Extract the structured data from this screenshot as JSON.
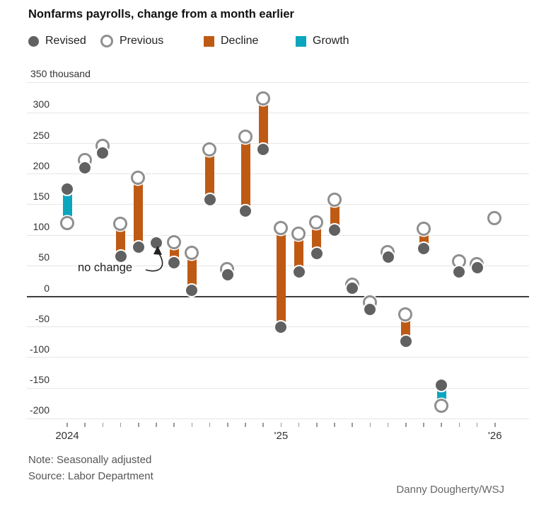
{
  "title": "Nonfarms payrolls, change from a month earlier",
  "legend": {
    "items": [
      {
        "label": "Revised",
        "type": "revised"
      },
      {
        "label": "Previous",
        "type": "previous"
      },
      {
        "label": "Decline",
        "type": "decline"
      },
      {
        "label": "Growth",
        "type": "growth"
      }
    ]
  },
  "annotation": {
    "text": "no change",
    "target_month": "Jun 2024"
  },
  "notes": {
    "line1": "Note: Seasonally adjusted",
    "line2": "Source: Labor Department"
  },
  "credit": "Danny Dougherty/WSJ",
  "colors": {
    "decline": "#bf5a14",
    "growth": "#0ba6bd",
    "revised_dot": "#616161",
    "previous_ring": "#8f8f8f",
    "grid": "#e6e6e6",
    "zero_line": "#3f3f3f"
  },
  "chart_data": {
    "type": "dumbbell-scatter",
    "title": "Nonfarms payrolls, change from a month earlier",
    "units": "thousand",
    "ylim": [
      -200,
      350
    ],
    "y_ticks": [
      {
        "value": 350,
        "label": "350 thousand"
      },
      {
        "value": 300,
        "label": "300"
      },
      {
        "value": 250,
        "label": "250"
      },
      {
        "value": 200,
        "label": "200"
      },
      {
        "value": 150,
        "label": "150"
      },
      {
        "value": 100,
        "label": "100"
      },
      {
        "value": 50,
        "label": "50"
      },
      {
        "value": 0,
        "label": "0"
      },
      {
        "value": -50,
        "label": "-50"
      },
      {
        "value": -100,
        "label": "-100"
      },
      {
        "value": -150,
        "label": "-150"
      },
      {
        "value": -200,
        "label": "-200"
      }
    ],
    "x_labels": [
      {
        "text": "2024",
        "month_index": 0
      },
      {
        "text": "'25",
        "month_index": 12
      },
      {
        "text": "'26",
        "month_index": 24
      }
    ],
    "series_legend": [
      "Revised",
      "Previous",
      "Decline",
      "Growth"
    ],
    "points": [
      {
        "month": "Jan 2024",
        "previous": 119,
        "revised": 175
      },
      {
        "month": "Feb 2024",
        "previous": 222,
        "revised": 210
      },
      {
        "month": "Mar 2024",
        "previous": 246,
        "revised": 235
      },
      {
        "month": "Apr 2024",
        "previous": 118,
        "revised": 65
      },
      {
        "month": "May 2024",
        "previous": 193,
        "revised": 80
      },
      {
        "month": "Jun 2024",
        "previous": 87,
        "revised": 87
      },
      {
        "month": "Jul 2024",
        "previous": 88,
        "revised": 55
      },
      {
        "month": "Aug 2024",
        "previous": 71,
        "revised": 10
      },
      {
        "month": "Sep 2024",
        "previous": 240,
        "revised": 158
      },
      {
        "month": "Oct 2024",
        "previous": 44,
        "revised": 35
      },
      {
        "month": "Nov 2024",
        "previous": 261,
        "revised": 140
      },
      {
        "month": "Dec 2024",
        "previous": 323,
        "revised": 240
      },
      {
        "month": "Jan 2025",
        "previous": 111,
        "revised": -50
      },
      {
        "month": "Feb 2025",
        "previous": 102,
        "revised": 40
      },
      {
        "month": "Mar 2025",
        "previous": 120,
        "revised": 70
      },
      {
        "month": "Apr 2025",
        "previous": 158,
        "revised": 108
      },
      {
        "month": "May 2025",
        "previous": 19,
        "revised": 13
      },
      {
        "month": "Jun 2025",
        "previous": -10,
        "revised": -22
      },
      {
        "month": "Jul 2025",
        "previous": 72,
        "revised": 64
      },
      {
        "month": "Aug 2025",
        "previous": -30,
        "revised": -73
      },
      {
        "month": "Sep 2025",
        "previous": 110,
        "revised": 78
      },
      {
        "month": "Oct 2025",
        "previous": -180,
        "revised": -145
      },
      {
        "month": "Nov 2025",
        "previous": 57,
        "revised": 40
      },
      {
        "month": "Dec 2025",
        "previous": 52,
        "revised": 47
      },
      {
        "month": "Jan 2026",
        "previous": 127,
        "revised": null
      }
    ]
  }
}
